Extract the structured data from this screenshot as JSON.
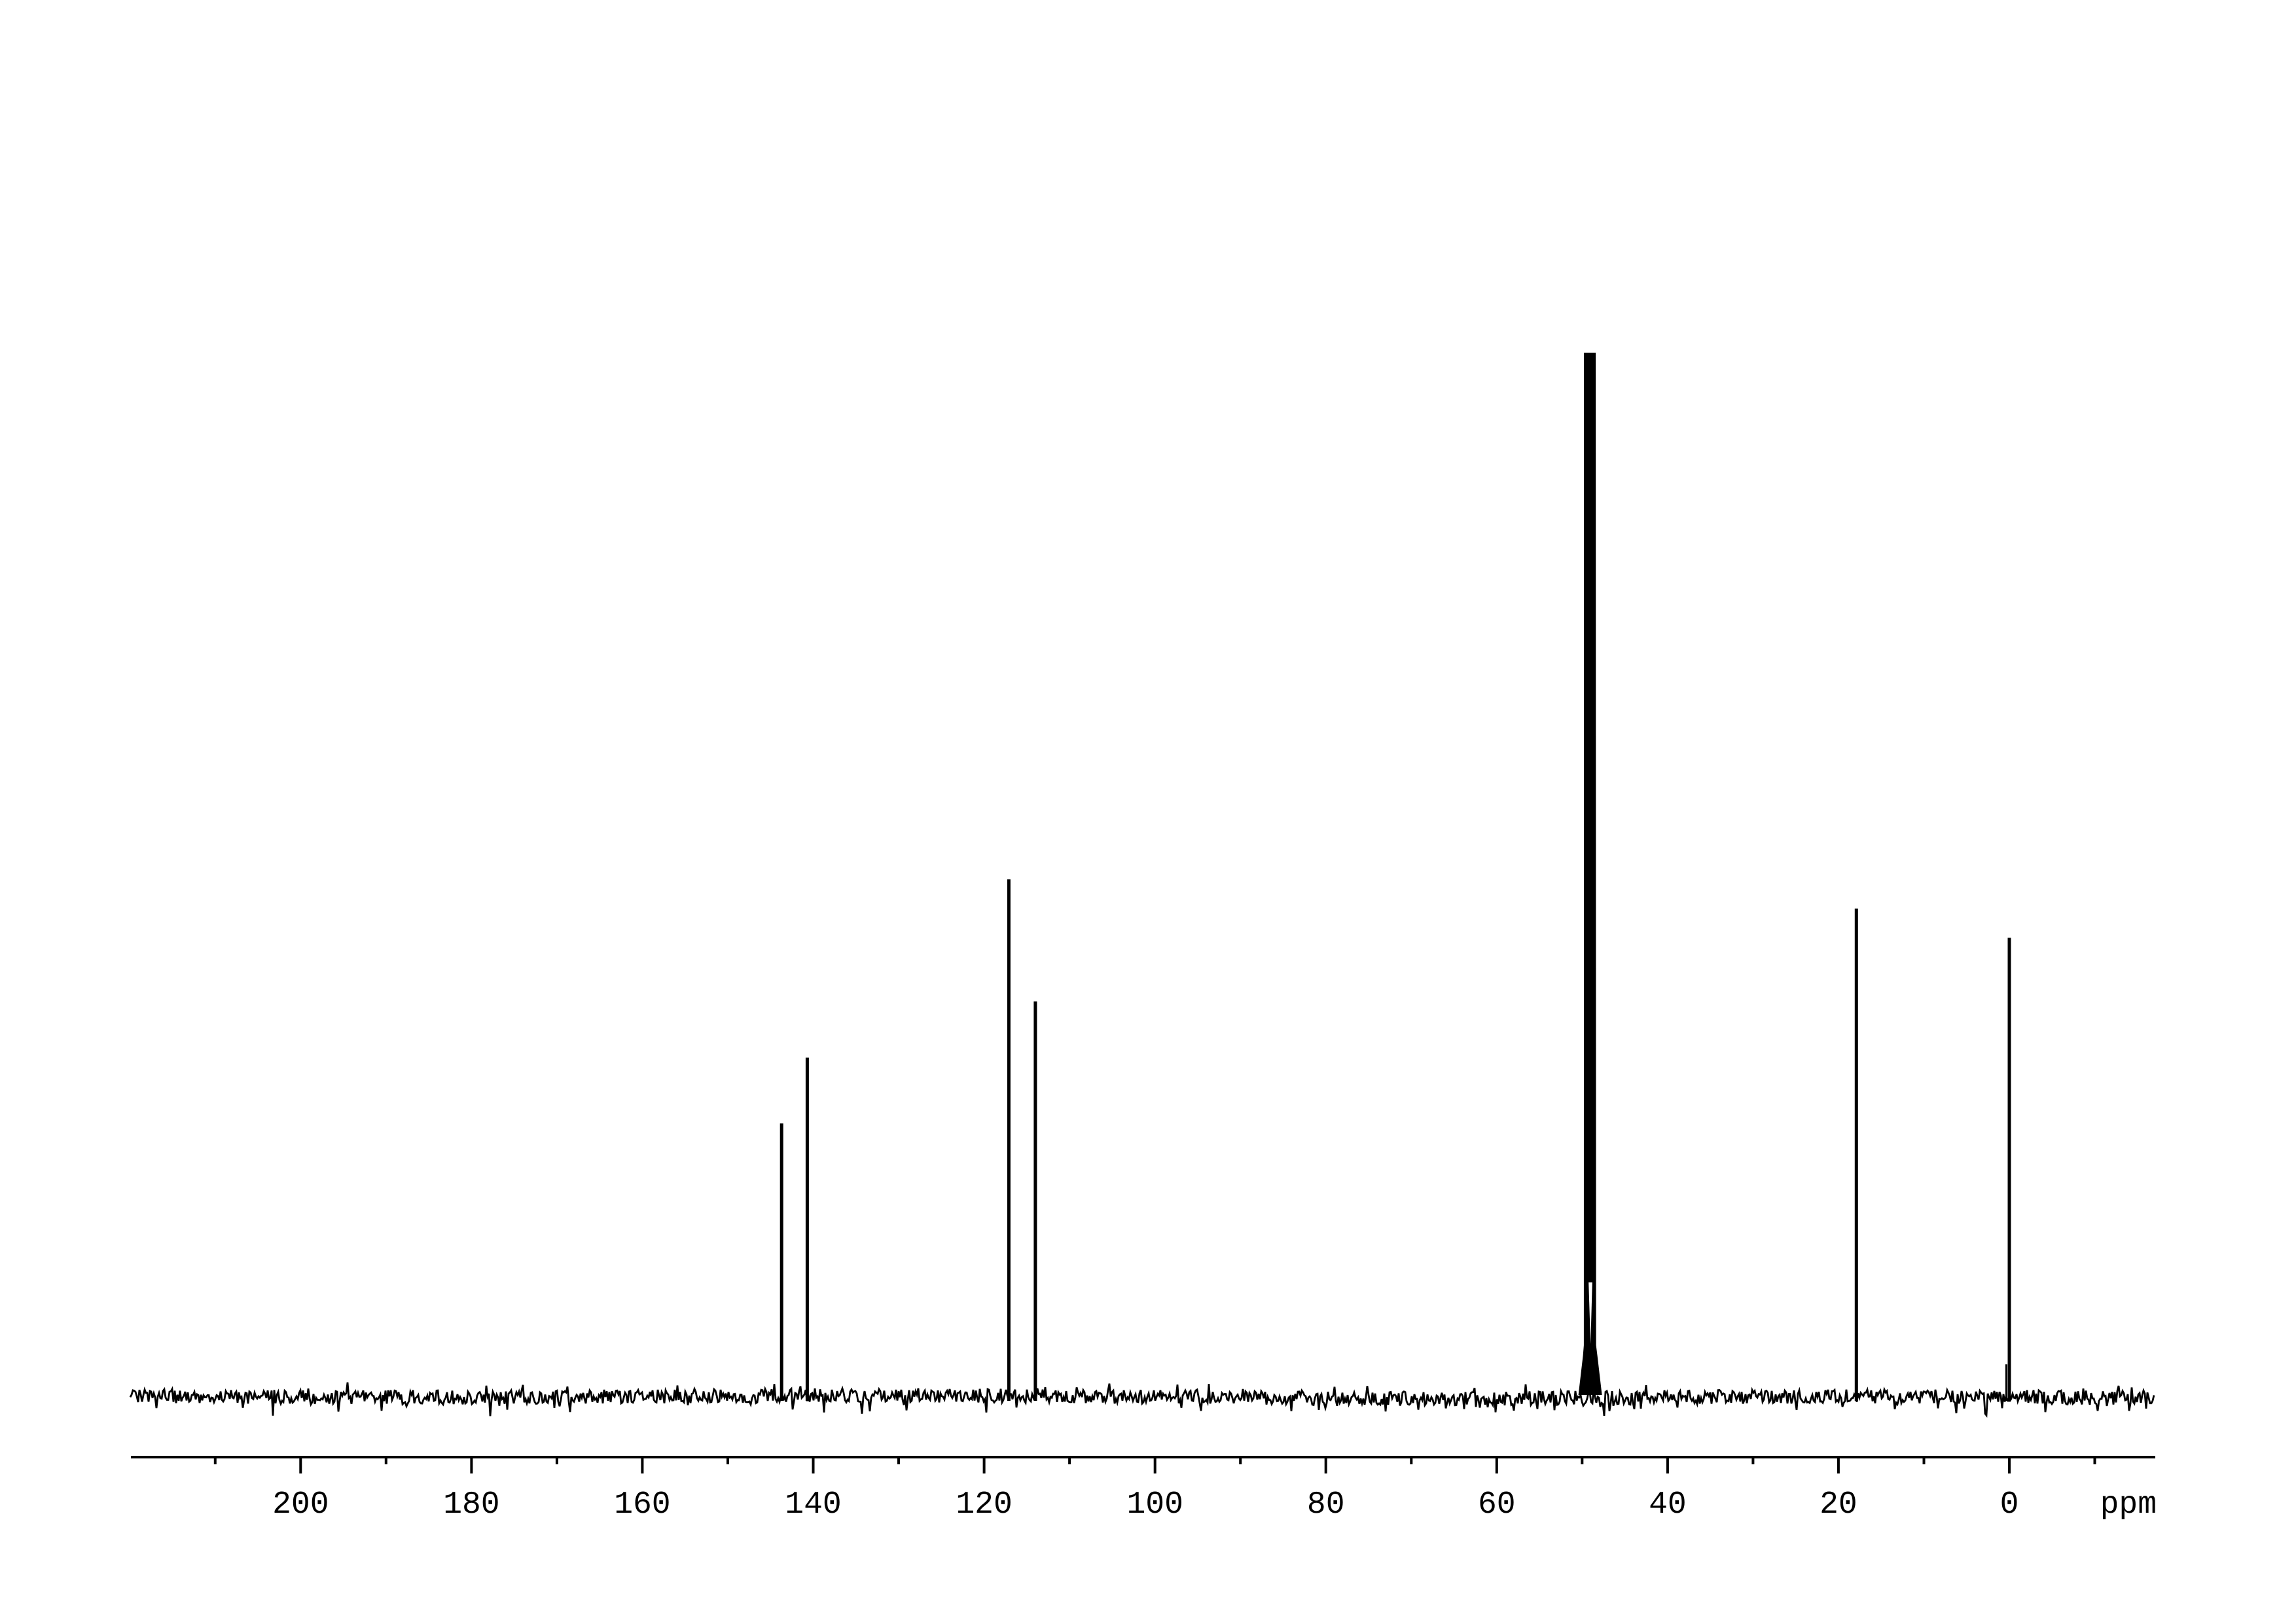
{
  "page": {
    "background_color": "#ffffff",
    "ink_color": "#000000"
  },
  "chart_data": {
    "type": "line",
    "description": "1D NMR spectrum trace: intensity versus chemical shift, single black trace on white background, no title, no y-axis",
    "title": "",
    "xlabel": "ppm",
    "ylabel": "",
    "x_axis": {
      "unit": "ppm",
      "range": [
        219.9,
        -17.1
      ],
      "direction": "decreasing-left-to-right",
      "major_ticks": [
        200,
        180,
        160,
        140,
        120,
        100,
        80,
        60,
        40,
        20,
        0
      ],
      "major_tick_labels": [
        "200",
        "180",
        "160",
        "140",
        "120",
        "100",
        "80",
        "60",
        "40",
        "20",
        "0"
      ],
      "minor_ticks": [
        210,
        190,
        170,
        150,
        130,
        110,
        90,
        70,
        50,
        30,
        10,
        -10
      ],
      "grid": false
    },
    "y_axis": {
      "visible": false,
      "scale_note": "relative intensity, tallest (solvent) peak = 1.0"
    },
    "legend": null,
    "baseline_noise": {
      "relative_amplitude": 0.008
    },
    "series": [
      {
        "name": "spectrum-trace",
        "color": "#000000",
        "peaks": [
          {
            "ppm": 143.7,
            "intensity": 0.261
          },
          {
            "ppm": 140.7,
            "intensity": 0.324
          },
          {
            "ppm": 117.1,
            "intensity": 0.495
          },
          {
            "ppm": 114.0,
            "intensity": 0.378
          },
          {
            "ppm": 49.0,
            "intensity": 1.0,
            "broad": true,
            "note": "very tall clipped multiplet"
          },
          {
            "ppm": 17.9,
            "intensity": 0.467
          },
          {
            "ppm": 0.35,
            "intensity": 0.03,
            "note": "small shoulder"
          },
          {
            "ppm": 0.0,
            "intensity": 0.439
          }
        ]
      }
    ]
  }
}
